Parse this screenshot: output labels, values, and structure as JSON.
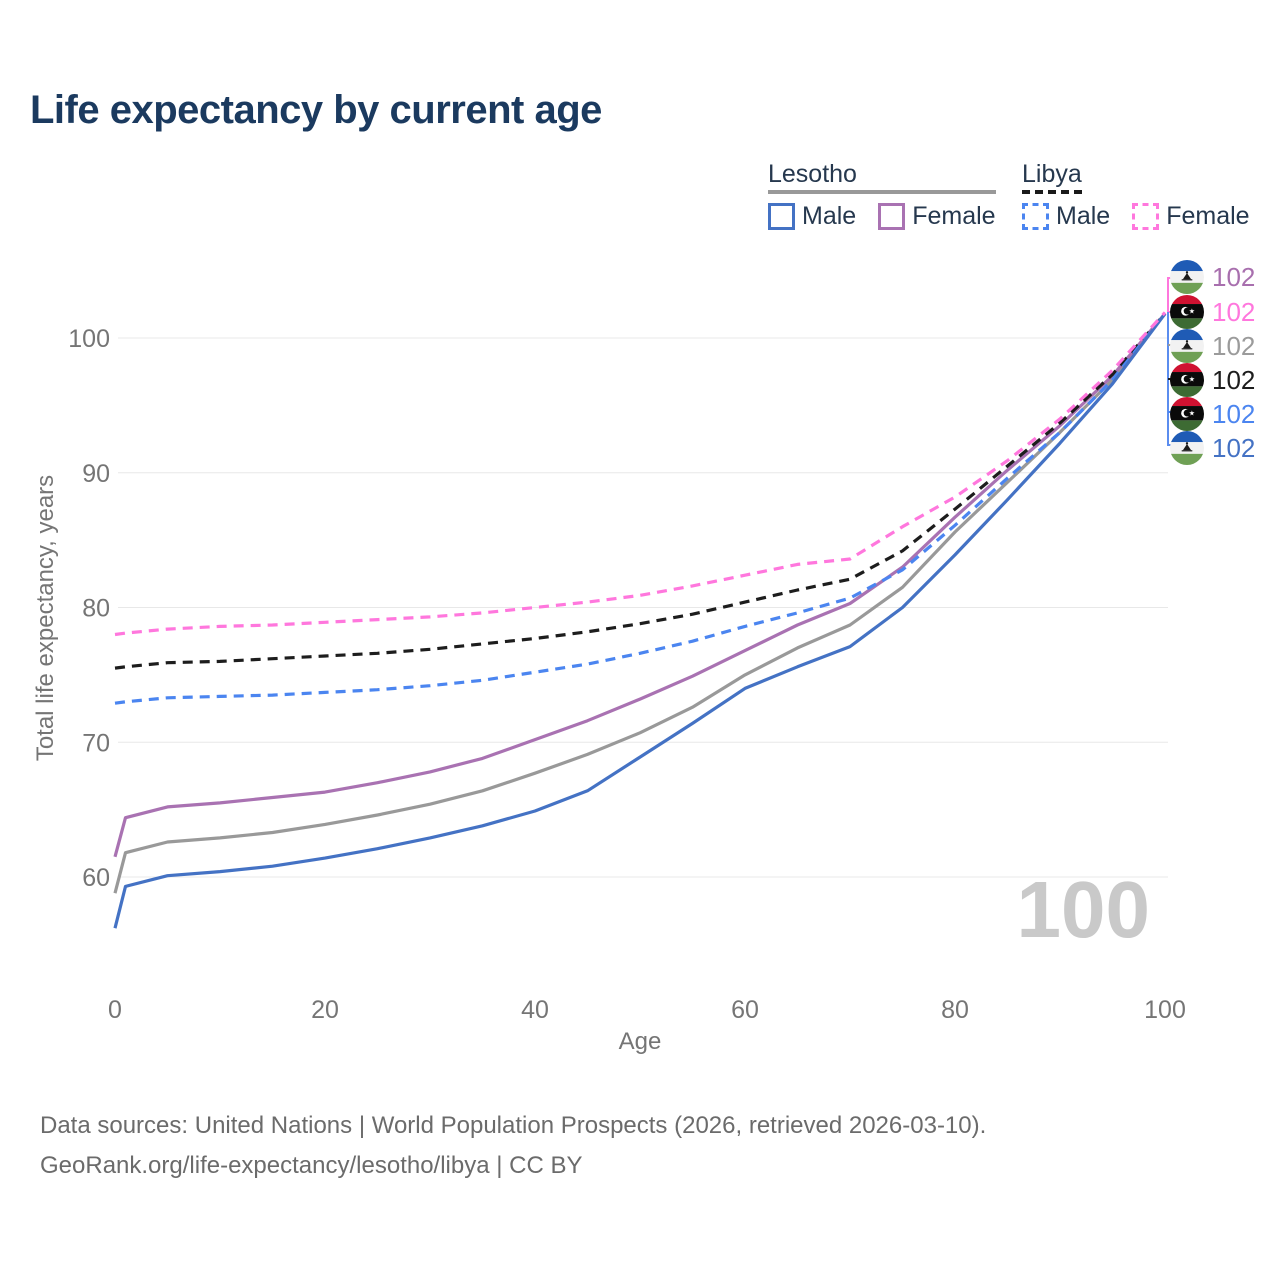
{
  "title": "Life expectancy by current age",
  "legend": {
    "groups": [
      {
        "name": "Lesotho",
        "line_style": "solid",
        "underline_color": "#999999",
        "items": [
          {
            "label": "Male",
            "color": "#4472c4",
            "dashed": false
          },
          {
            "label": "Female",
            "color": "#a972b2",
            "dashed": false
          }
        ]
      },
      {
        "name": "Libya",
        "line_style": "dashed",
        "underline_color": "#1a1a1a",
        "items": [
          {
            "label": "Male",
            "color": "#4b85f0",
            "dashed": true
          },
          {
            "label": "Female",
            "color": "#ff77dd",
            "dashed": true
          }
        ]
      }
    ]
  },
  "watermark": "100",
  "end_labels": [
    {
      "country": "lesotho",
      "series": "Lesotho Female",
      "value": "102",
      "color": "#a86fae"
    },
    {
      "country": "libya",
      "series": "Libya Female",
      "value": "102",
      "color": "#ff77dd"
    },
    {
      "country": "lesotho",
      "series": "Lesotho Both sexes",
      "value": "102",
      "color": "#9b9b9b"
    },
    {
      "country": "libya",
      "series": "Libya Both sexes",
      "value": "102",
      "color": "#1d1d1d"
    },
    {
      "country": "libya",
      "series": "Libya Male",
      "value": "102",
      "color": "#4b85f0"
    },
    {
      "country": "lesotho",
      "series": "Lesotho Male",
      "value": "102",
      "color": "#4472c4"
    }
  ],
  "footer": {
    "line1": "Data sources: United Nations | World Population Prospects (2026, retrieved 2026-03-10).",
    "line2": "GeoRank.org/life-expectancy/lesotho/libya | CC BY"
  },
  "chart_data": {
    "type": "line",
    "title": "Life expectancy by current age",
    "xlabel": "Age",
    "ylabel": "Total life expectancy, years",
    "xlim": [
      0,
      100
    ],
    "ylim": [
      56,
      103
    ],
    "xticks": [
      0,
      20,
      40,
      60,
      80,
      100
    ],
    "yticks": [
      60,
      70,
      80,
      90,
      100
    ],
    "grid": true,
    "gridline_color": "#e8e8e8",
    "tick_color": "#757575",
    "x": [
      0,
      1,
      5,
      10,
      15,
      20,
      25,
      30,
      35,
      40,
      45,
      50,
      55,
      60,
      65,
      70,
      75,
      80,
      85,
      90,
      95,
      100
    ],
    "series": [
      {
        "name": "Lesotho Both sexes",
        "country": "Lesotho",
        "sex": "Both",
        "style": "solid",
        "color": "#999999",
        "values": [
          58.8,
          61.8,
          62.6,
          62.9,
          63.3,
          63.9,
          64.6,
          65.4,
          66.4,
          67.7,
          69.1,
          70.7,
          72.6,
          75.0,
          77.0,
          78.7,
          81.5,
          85.6,
          89.3,
          93.0,
          96.9,
          101.8
        ]
      },
      {
        "name": "Lesotho Female",
        "country": "Lesotho",
        "sex": "Female",
        "style": "solid",
        "color": "#a972b2",
        "values": [
          61.5,
          64.4,
          65.2,
          65.5,
          65.9,
          66.3,
          67.0,
          67.8,
          68.8,
          70.2,
          71.6,
          73.2,
          74.9,
          76.8,
          78.7,
          80.3,
          83.0,
          86.7,
          90.2,
          93.5,
          97.2,
          101.8
        ]
      },
      {
        "name": "Libya Both sexes",
        "country": "Libya",
        "sex": "Both",
        "style": "dashed",
        "color": "#1d1d1d",
        "values": [
          75.5,
          75.6,
          75.9,
          76.0,
          76.2,
          76.4,
          76.6,
          76.9,
          77.3,
          77.7,
          78.2,
          78.8,
          79.5,
          80.4,
          81.3,
          82.1,
          84.2,
          87.3,
          90.5,
          93.7,
          97.3,
          101.8
        ]
      },
      {
        "name": "Libya Male",
        "country": "Libya",
        "sex": "Male",
        "style": "dashed",
        "color": "#4b85f0",
        "values": [
          72.9,
          73.0,
          73.3,
          73.4,
          73.5,
          73.7,
          73.9,
          74.2,
          74.6,
          75.2,
          75.8,
          76.6,
          77.5,
          78.6,
          79.6,
          80.7,
          82.8,
          86.1,
          89.6,
          93.0,
          96.9,
          101.8
        ]
      },
      {
        "name": "Lesotho Male",
        "country": "Lesotho",
        "sex": "Male",
        "style": "solid",
        "color": "#4472c4",
        "values": [
          56.2,
          59.3,
          60.1,
          60.4,
          60.8,
          61.4,
          62.1,
          62.9,
          63.8,
          64.9,
          66.4,
          68.9,
          71.4,
          74.0,
          75.6,
          77.1,
          80.0,
          83.9,
          88.0,
          92.2,
          96.6,
          101.8
        ]
      },
      {
        "name": "Libya Female",
        "country": "Libya",
        "sex": "Female",
        "style": "dashed",
        "color": "#ff77dd",
        "values": [
          78.0,
          78.1,
          78.4,
          78.6,
          78.7,
          78.9,
          79.1,
          79.3,
          79.6,
          80.0,
          80.4,
          80.9,
          81.6,
          82.4,
          83.2,
          83.6,
          86.0,
          88.2,
          90.9,
          94.0,
          97.6,
          101.9
        ]
      }
    ]
  }
}
